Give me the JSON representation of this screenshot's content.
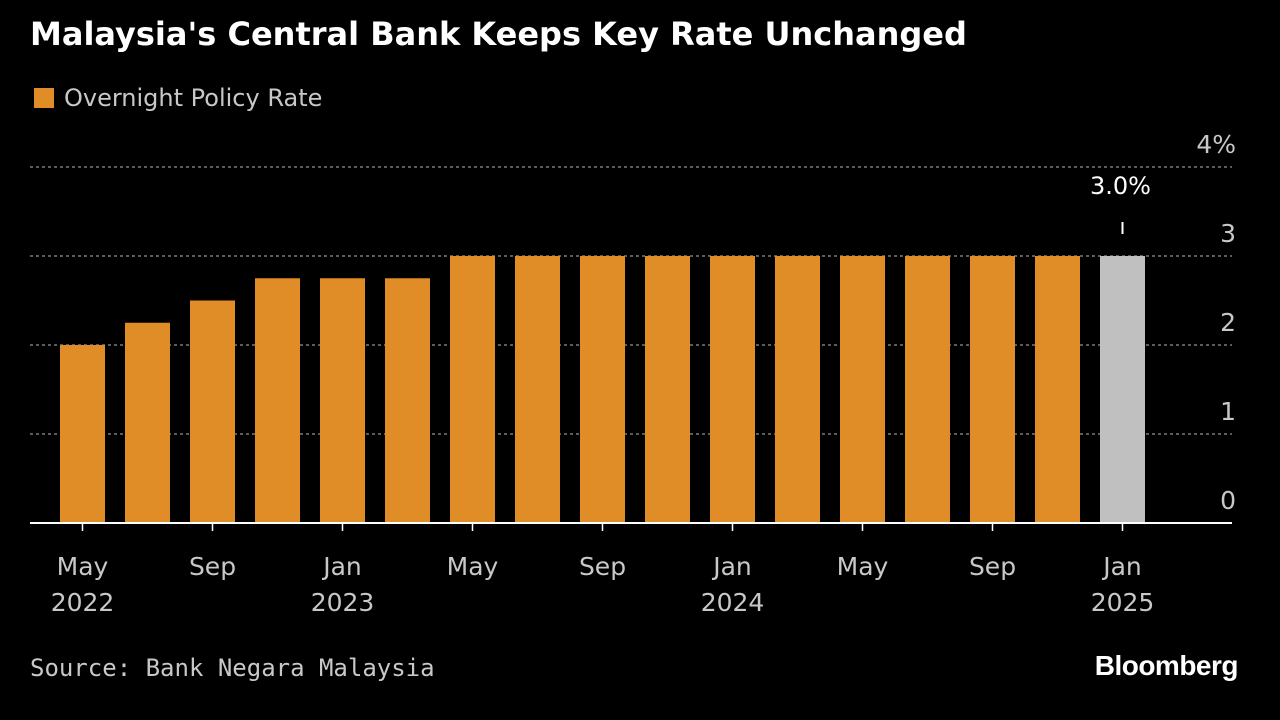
{
  "title": "Malaysia's Central Bank Keeps Key Rate Unchanged",
  "source": "Source: Bank Negara Malaysia",
  "brand": "Bloomberg",
  "colors": {
    "background": "#000000",
    "bar": "#e08c27",
    "highlight_bar": "#c0c0c0",
    "gridline": "#7a7a7a",
    "axis": "#ffffff",
    "text": "#c8c8c8"
  },
  "chart_data": {
    "type": "bar",
    "title": "Malaysia's Central Bank Keeps Key Rate Unchanged",
    "legend": [
      "Overnight Policy Rate"
    ],
    "legend_position": "top-left",
    "ylabel": "",
    "xlabel": "",
    "ylim": [
      0,
      4
    ],
    "y_axis_side": "right",
    "grid": true,
    "y_ticks": [
      {
        "value": 0,
        "label": "0"
      },
      {
        "value": 1,
        "label": "1"
      },
      {
        "value": 2,
        "label": "2"
      },
      {
        "value": 3,
        "label": "3"
      },
      {
        "value": 4,
        "label": "4%"
      }
    ],
    "categories": [
      "May 2022",
      "Jul 2022",
      "Sep 2022",
      "Nov 2022",
      "Jan 2023",
      "Mar 2023",
      "May 2023",
      "Jul 2023",
      "Sep 2023",
      "Nov 2023",
      "Jan 2024",
      "Mar 2024",
      "May 2024",
      "Jul 2024",
      "Sep 2024",
      "Nov 2024",
      "Jan 2025"
    ],
    "series": [
      {
        "name": "Overnight Policy Rate",
        "values": [
          2.0,
          2.25,
          2.5,
          2.75,
          2.75,
          2.75,
          3.0,
          3.0,
          3.0,
          3.0,
          3.0,
          3.0,
          3.0,
          3.0,
          3.0,
          3.0,
          3.0
        ]
      }
    ],
    "highlight_index": 16,
    "x_ticks": [
      {
        "index": 0,
        "line1": "May",
        "line2": "2022"
      },
      {
        "index": 2,
        "line1": "Sep",
        "line2": ""
      },
      {
        "index": 4,
        "line1": "Jan",
        "line2": "2023"
      },
      {
        "index": 6,
        "line1": "May",
        "line2": ""
      },
      {
        "index": 8,
        "line1": "Sep",
        "line2": ""
      },
      {
        "index": 10,
        "line1": "Jan",
        "line2": "2024"
      },
      {
        "index": 12,
        "line1": "May",
        "line2": ""
      },
      {
        "index": 14,
        "line1": "Sep",
        "line2": ""
      },
      {
        "index": 16,
        "line1": "Jan",
        "line2": "2025"
      }
    ],
    "annotations": [
      {
        "index": 16,
        "text": "3.0%"
      }
    ]
  }
}
